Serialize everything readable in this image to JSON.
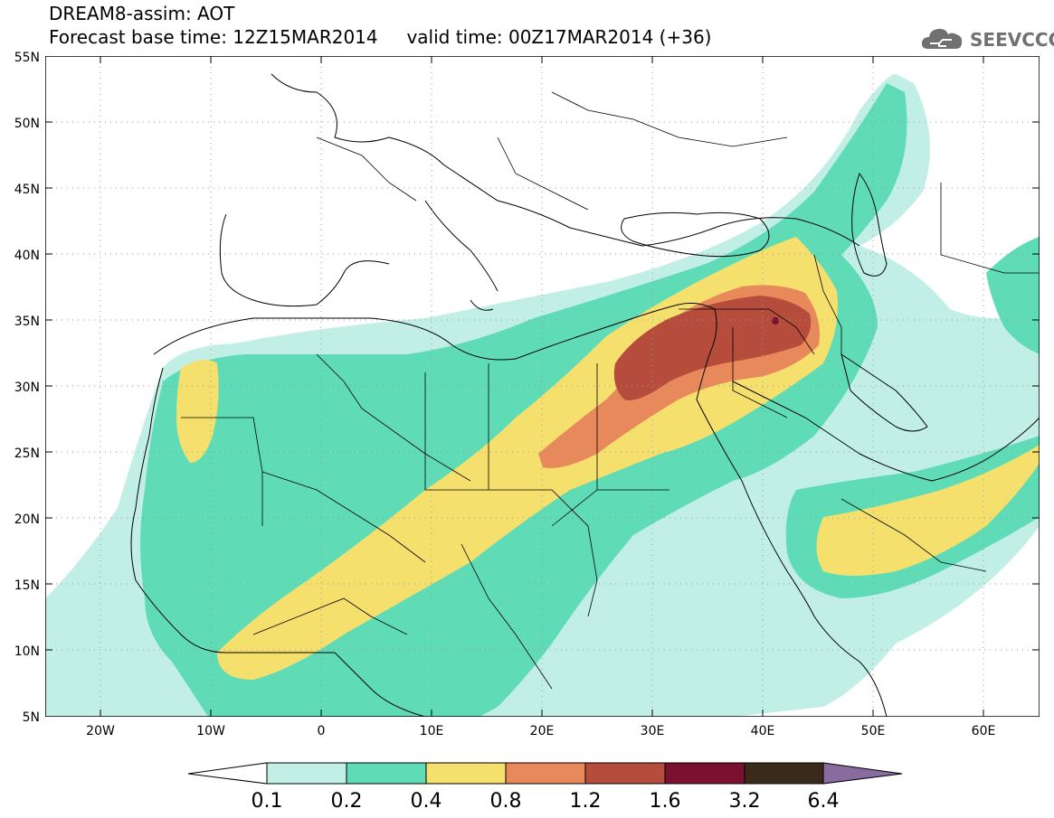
{
  "header": {
    "title": "DREAM8-assim: AOT",
    "base_time_label": "Forecast base time: 12Z15MAR2014",
    "valid_time_label": "valid time: 00Z17MAR2014 (+36)"
  },
  "logo": {
    "text": "SEEVCCC",
    "icon": "cloud-icon"
  },
  "map": {
    "lat_labels": [
      "55N",
      "50N",
      "45N",
      "40N",
      "35N",
      "30N",
      "25N",
      "20N",
      "15N",
      "10N",
      "5N"
    ],
    "lon_labels": [
      "20W",
      "10W",
      "0",
      "10E",
      "20E",
      "30E",
      "40E",
      "50E",
      "60E"
    ],
    "extent": {
      "lon": [
        -25,
        65
      ],
      "lat": [
        5,
        55
      ]
    }
  },
  "colorbar": {
    "labels": [
      "0.1",
      "0.2",
      "0.4",
      "0.8",
      "1.2",
      "1.6",
      "3.2",
      "6.4"
    ],
    "colors": [
      "#ffffff",
      "#c1efe6",
      "#5fdcb6",
      "#f5e06e",
      "#e8895c",
      "#b64d3c",
      "#7a1131",
      "#3a2a1a",
      "#8a6ba0"
    ]
  }
}
